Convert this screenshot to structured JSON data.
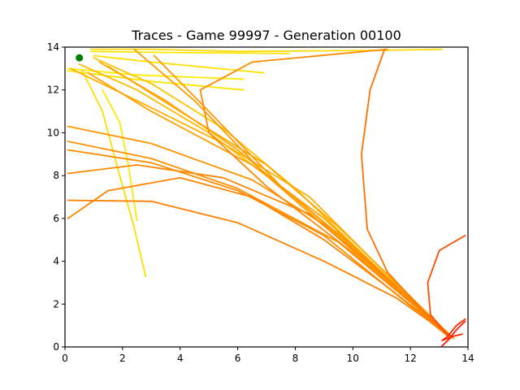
{
  "chart_data": {
    "type": "line",
    "title": "Traces - Game 99997 - Generation 00100",
    "xlabel": "",
    "ylabel": "",
    "xlim": [
      0,
      14
    ],
    "ylim": [
      0,
      14
    ],
    "xticks": [
      "0",
      "2",
      "4",
      "6",
      "8",
      "10",
      "12",
      "14"
    ],
    "yticks": [
      "0",
      "2",
      "4",
      "6",
      "8",
      "10",
      "12",
      "14"
    ],
    "grid": false,
    "legend": "none",
    "colors": {
      "early": "#ffee00",
      "mid": "#ff9900",
      "late": "#ff2200",
      "point": "#008000"
    },
    "target_point": {
      "x": 0.5,
      "y": 13.5
    },
    "series": [
      {
        "color": "#ffe600",
        "points": [
          [
            0.9,
            13.8
          ],
          [
            3.5,
            13.75
          ],
          [
            7.8,
            13.7
          ]
        ]
      },
      {
        "color": "#ffe000",
        "points": [
          [
            1.0,
            13.6
          ],
          [
            3.0,
            13.3
          ],
          [
            6.9,
            12.8
          ]
        ]
      },
      {
        "color": "#ffea00",
        "points": [
          [
            0.1,
            13.0
          ],
          [
            2.5,
            12.7
          ],
          [
            6.2,
            12.5
          ]
        ]
      },
      {
        "color": "#ffe400",
        "points": [
          [
            0.1,
            12.9
          ],
          [
            3.0,
            12.4
          ],
          [
            6.2,
            12.0
          ]
        ]
      },
      {
        "color": "#ffd800",
        "points": [
          [
            0.9,
            13.9
          ],
          [
            3.0,
            13.9
          ],
          [
            6.0,
            13.8
          ],
          [
            11.0,
            13.85
          ],
          [
            13.1,
            13.9
          ]
        ]
      },
      {
        "color": "#ffdd00",
        "points": [
          [
            0.6,
            12.9
          ],
          [
            1.3,
            11.0
          ],
          [
            1.9,
            8.0
          ],
          [
            2.4,
            5.6
          ],
          [
            2.8,
            3.3
          ]
        ]
      },
      {
        "color": "#ffe800",
        "points": [
          [
            1.3,
            12.0
          ],
          [
            1.9,
            10.5
          ],
          [
            2.2,
            8.5
          ],
          [
            2.5,
            5.9
          ]
        ]
      },
      {
        "color": "#ffc400",
        "points": [
          [
            1.0,
            13.5
          ],
          [
            3.0,
            12.3
          ],
          [
            5.5,
            10.2
          ],
          [
            8.0,
            7.4
          ],
          [
            13.4,
            0.4
          ]
        ]
      },
      {
        "color": "#ffbb00",
        "points": [
          [
            0.5,
            13.2
          ],
          [
            2.5,
            12.0
          ],
          [
            5.0,
            10.0
          ],
          [
            8.0,
            7.0
          ],
          [
            13.3,
            0.5
          ]
        ]
      },
      {
        "color": "#ffb000",
        "points": [
          [
            0.2,
            13.0
          ],
          [
            2.5,
            11.5
          ],
          [
            5.5,
            9.5
          ],
          [
            8.5,
            7.0
          ],
          [
            13.4,
            0.4
          ]
        ]
      },
      {
        "color": "#ffa800",
        "points": [
          [
            1.2,
            13.3
          ],
          [
            3.5,
            11.5
          ],
          [
            6.0,
            9.2
          ],
          [
            9.0,
            5.8
          ],
          [
            13.4,
            0.5
          ]
        ]
      },
      {
        "color": "#ffa500",
        "points": [
          [
            1.5,
            13.1
          ],
          [
            4.0,
            11.0
          ],
          [
            7.0,
            8.5
          ],
          [
            9.5,
            5.6
          ],
          [
            13.5,
            0.4
          ]
        ]
      },
      {
        "color": "#ffa000",
        "points": [
          [
            0.8,
            12.8
          ],
          [
            3.0,
            11.0
          ],
          [
            6.5,
            8.5
          ],
          [
            9.0,
            6.0
          ],
          [
            13.4,
            0.5
          ]
        ]
      },
      {
        "color": "#ff9c00",
        "points": [
          [
            2.4,
            13.9
          ],
          [
            4.5,
            11.5
          ],
          [
            7.0,
            8.0
          ],
          [
            10.0,
            4.5
          ],
          [
            13.5,
            0.4
          ]
        ]
      },
      {
        "color": "#ff9800",
        "points": [
          [
            3.1,
            13.6
          ],
          [
            5.0,
            11.0
          ],
          [
            7.5,
            7.5
          ],
          [
            10.0,
            4.7
          ],
          [
            13.4,
            0.5
          ]
        ]
      },
      {
        "color": "#ff9400",
        "points": [
          [
            0.1,
            10.3
          ],
          [
            3.0,
            9.5
          ],
          [
            6.5,
            7.8
          ],
          [
            9.5,
            5.3
          ],
          [
            13.4,
            0.5
          ]
        ]
      },
      {
        "color": "#ff9000",
        "points": [
          [
            0.1,
            9.6
          ],
          [
            3.0,
            8.8
          ],
          [
            6.0,
            7.4
          ],
          [
            9.5,
            4.9
          ],
          [
            13.4,
            0.5
          ]
        ]
      },
      {
        "color": "#ff8c00",
        "points": [
          [
            0.1,
            9.2
          ],
          [
            3.0,
            8.6
          ],
          [
            6.0,
            7.3
          ],
          [
            9.0,
            5.2
          ],
          [
            13.3,
            0.5
          ]
        ]
      },
      {
        "color": "#ff8800",
        "points": [
          [
            0.1,
            8.1
          ],
          [
            2.5,
            8.5
          ],
          [
            5.5,
            7.9
          ],
          [
            8.5,
            6.2
          ],
          [
            10.5,
            4.0
          ],
          [
            13.4,
            0.5
          ]
        ]
      },
      {
        "color": "#ff8400",
        "points": [
          [
            0.1,
            6.0
          ],
          [
            1.5,
            7.3
          ],
          [
            4.0,
            7.9
          ],
          [
            6.5,
            7.0
          ],
          [
            9.0,
            5.0
          ],
          [
            11.0,
            3.0
          ],
          [
            13.4,
            0.5
          ]
        ]
      },
      {
        "color": "#ff8000",
        "points": [
          [
            0.1,
            6.85
          ],
          [
            3.0,
            6.8
          ],
          [
            6.0,
            5.8
          ],
          [
            9.0,
            4.0
          ],
          [
            11.5,
            2.3
          ],
          [
            13.4,
            0.5
          ]
        ]
      },
      {
        "color": "#ff8a00",
        "points": [
          [
            11.2,
            13.9
          ],
          [
            6.5,
            13.3
          ],
          [
            4.7,
            12.0
          ],
          [
            5.0,
            10.0
          ],
          [
            7.0,
            7.5
          ],
          [
            10.0,
            4.4
          ],
          [
            13.4,
            0.5
          ]
        ]
      },
      {
        "color": "#ff7000",
        "points": [
          [
            11.1,
            13.9
          ],
          [
            10.6,
            12.0
          ],
          [
            10.3,
            9.0
          ],
          [
            10.5,
            5.5
          ],
          [
            11.2,
            3.5
          ],
          [
            12.5,
            1.6
          ],
          [
            13.4,
            0.4
          ]
        ]
      },
      {
        "color": "#ff4a00",
        "points": [
          [
            13.9,
            5.2
          ],
          [
            13.0,
            4.5
          ],
          [
            12.6,
            3.0
          ],
          [
            12.7,
            1.5
          ],
          [
            13.2,
            0.7
          ],
          [
            13.4,
            0.5
          ]
        ]
      },
      {
        "color": "#ff2600",
        "points": [
          [
            13.9,
            1.3
          ],
          [
            13.6,
            1.0
          ],
          [
            13.3,
            0.5
          ],
          [
            13.1,
            0.3
          ],
          [
            13.5,
            0.5
          ],
          [
            13.8,
            0.6
          ]
        ]
      },
      {
        "color": "#ff1a00",
        "points": [
          [
            13.1,
            0.05
          ],
          [
            13.3,
            0.3
          ],
          [
            13.6,
            0.8
          ],
          [
            13.9,
            1.2
          ]
        ]
      }
    ]
  }
}
